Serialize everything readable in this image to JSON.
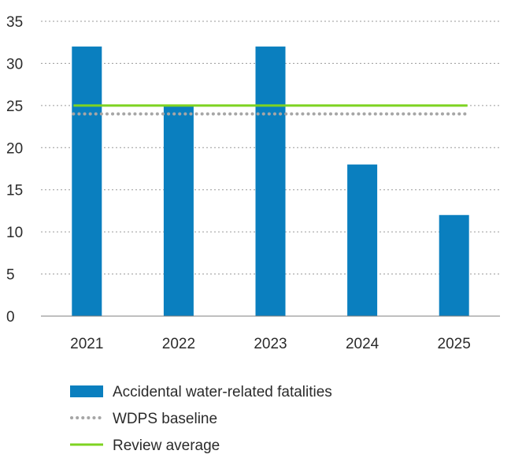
{
  "chart_data": {
    "type": "bar",
    "categories": [
      "2021",
      "2022",
      "2023",
      "2024",
      "2025"
    ],
    "series": [
      {
        "name": "Accidental water-related fatalities",
        "type": "bar",
        "values": [
          32,
          25,
          32,
          18,
          12
        ],
        "color": "#0a7fbf"
      },
      {
        "name": "WDPS baseline",
        "type": "line",
        "style": "dotted",
        "values": [
          24,
          24,
          24,
          24,
          24
        ],
        "color": "#a6a6a6"
      },
      {
        "name": "Review average",
        "type": "line",
        "style": "solid",
        "values": [
          25,
          25,
          25,
          25,
          25
        ],
        "color": "#7ed321"
      }
    ],
    "y_ticks": [
      "0",
      "5",
      "10",
      "15",
      "20",
      "25",
      "30",
      "35"
    ],
    "ylim": [
      0,
      35
    ],
    "grid": "horizontal-dashed",
    "legend_position": "bottom",
    "title": "",
    "xlabel": "",
    "ylabel": ""
  }
}
